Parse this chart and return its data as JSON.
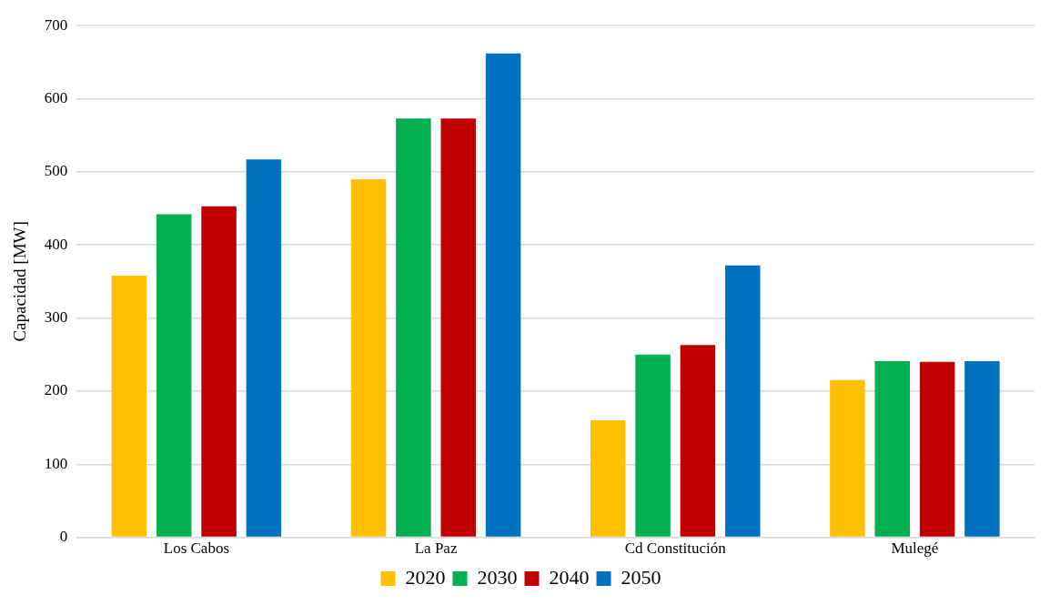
{
  "chart_data": {
    "type": "bar",
    "ylabel": "Capacidad [MW]",
    "categories": [
      "Los Cabos",
      "La Paz",
      "Cd Constitución",
      "Mulegé"
    ],
    "series": [
      {
        "name": "2020",
        "color": "#ffc000",
        "values": [
          358,
          490,
          160,
          215
        ]
      },
      {
        "name": "2030",
        "color": "#00b050",
        "values": [
          442,
          573,
          250,
          241
        ]
      },
      {
        "name": "2040",
        "color": "#c00000",
        "values": [
          453,
          573,
          263,
          240
        ]
      },
      {
        "name": "2050",
        "color": "#0070c0",
        "values": [
          517,
          662,
          372,
          241
        ]
      }
    ],
    "ylim": [
      0,
      700
    ],
    "yticks": [
      0,
      100,
      200,
      300,
      400,
      500,
      600,
      700
    ],
    "grid": "y",
    "legend": "bottom"
  }
}
